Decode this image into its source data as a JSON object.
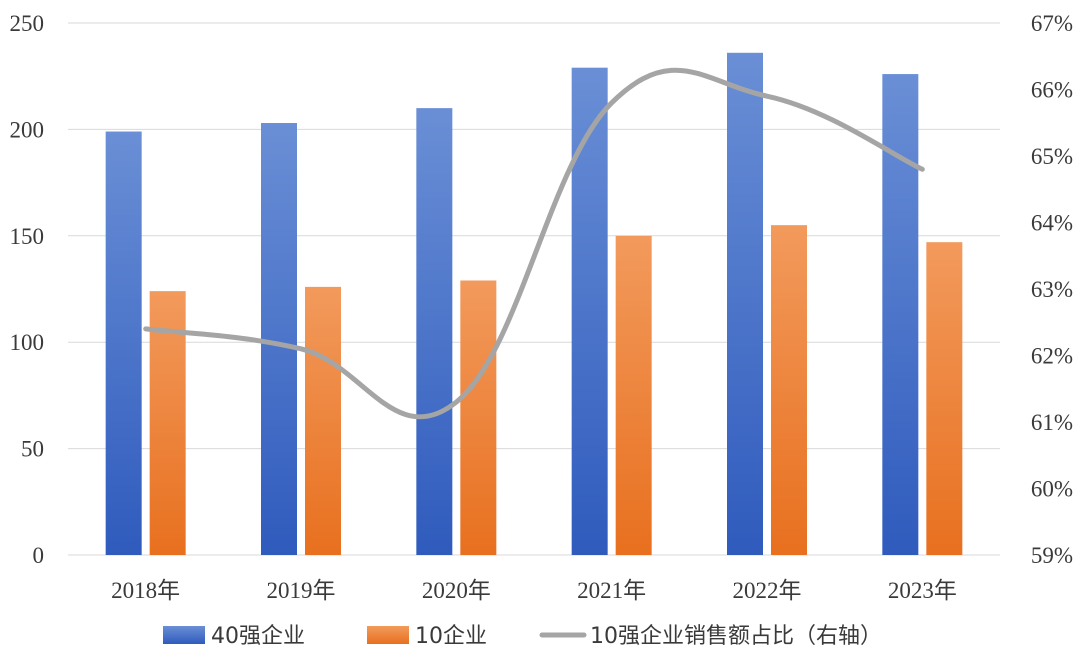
{
  "chart_data": {
    "type": "bar",
    "categories": [
      "2018年",
      "2019年",
      "2020年",
      "2021年",
      "2022年",
      "2023年"
    ],
    "series": [
      {
        "name": "40强企业",
        "kind": "bar",
        "axis": "left",
        "color": "#4472c4",
        "values": [
          199,
          203,
          210,
          229,
          236,
          226
        ]
      },
      {
        "name": "10企业",
        "kind": "bar",
        "axis": "left",
        "color": "#ed7d31",
        "values": [
          124,
          126,
          129,
          150,
          155,
          147
        ]
      },
      {
        "name": "10强企业销售额占比（右轴）",
        "kind": "line",
        "axis": "right",
        "color": "#a5a5a5",
        "values": [
          62.4,
          62.1,
          61.3,
          65.8,
          65.9,
          64.8
        ]
      }
    ],
    "ylim_left": [
      0,
      250
    ],
    "yticks_left": [
      "0",
      "50",
      "100",
      "150",
      "200",
      "250"
    ],
    "ylim_right": [
      59,
      67
    ],
    "yticks_right": [
      "59%",
      "60%",
      "61%",
      "62%",
      "63%",
      "64%",
      "65%",
      "66%",
      "67%"
    ],
    "grid": true,
    "legend_position": "bottom"
  }
}
